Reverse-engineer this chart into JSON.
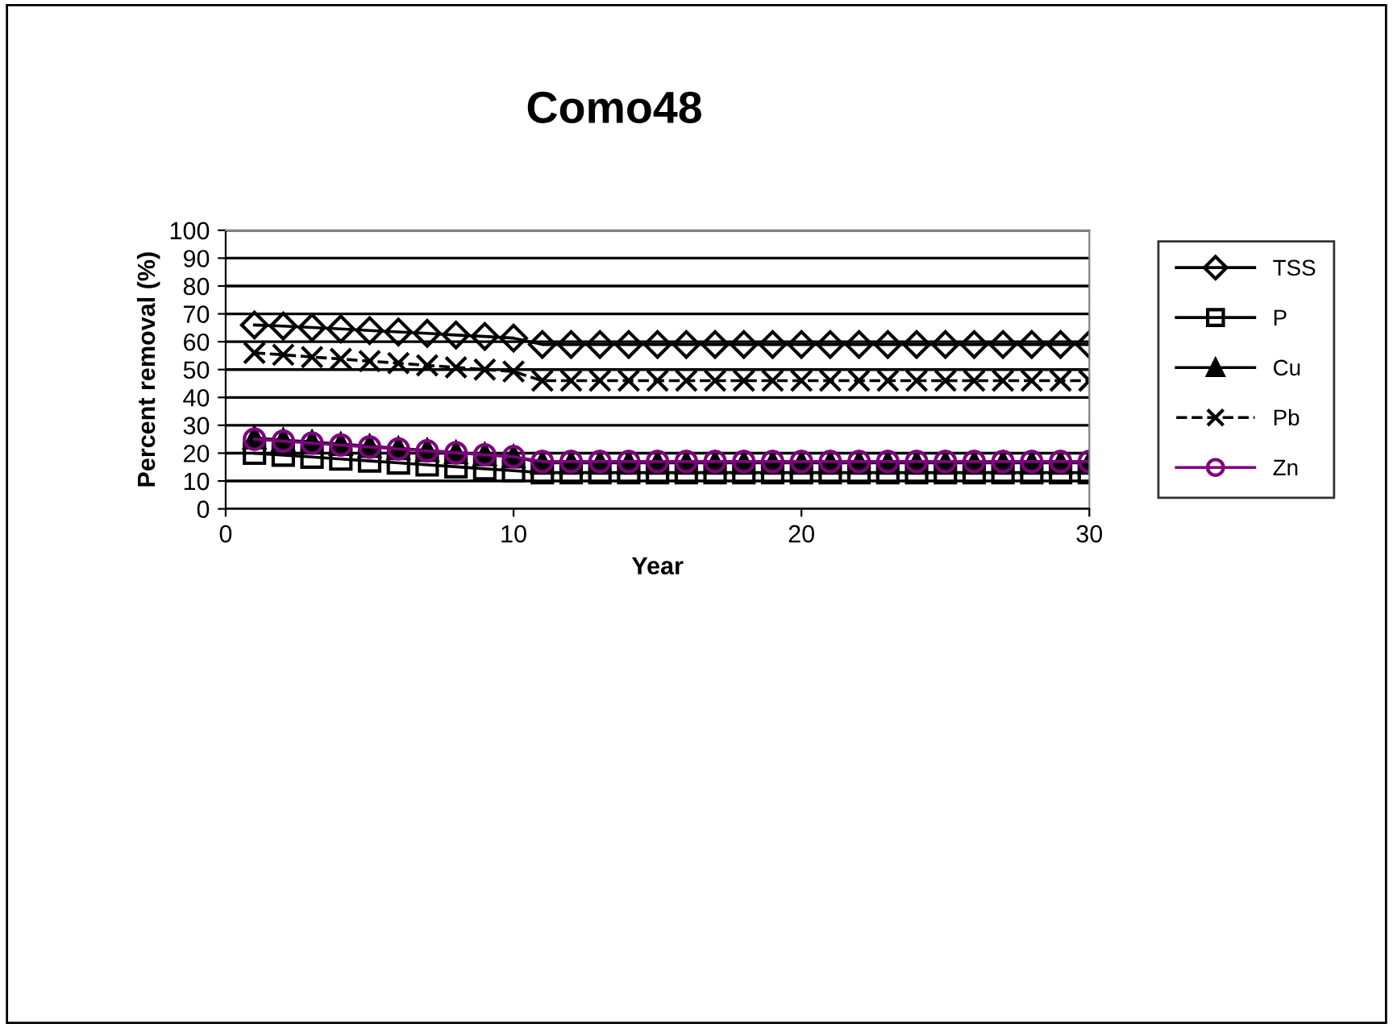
{
  "chart_data": {
    "type": "line",
    "title": "Como48",
    "xlabel": "Year",
    "ylabel": "Percent removal (%)",
    "x": [
      1,
      2,
      3,
      4,
      5,
      6,
      7,
      8,
      9,
      10,
      11,
      12,
      13,
      14,
      15,
      16,
      17,
      18,
      19,
      20,
      21,
      22,
      23,
      24,
      25,
      26,
      27,
      28,
      29,
      30
    ],
    "series": [
      {
        "name": "TSS",
        "color": "#000000",
        "marker": "diamond",
        "line_style": "solid",
        "values": [
          66.0,
          65.6,
          65.1,
          64.6,
          64.0,
          63.5,
          63.0,
          62.4,
          61.9,
          61.3,
          59,
          59,
          59,
          59,
          59,
          59,
          59,
          59,
          59,
          59,
          59,
          59,
          59,
          59,
          59,
          59,
          59,
          59,
          59,
          59
        ]
      },
      {
        "name": "P",
        "color": "#000000",
        "marker": "square",
        "line_style": "solid",
        "values": [
          20.0,
          19.3,
          18.6,
          17.9,
          17.2,
          16.5,
          15.8,
          15.1,
          14.4,
          13.7,
          13,
          13,
          13,
          13,
          13,
          13,
          13,
          13,
          13,
          13,
          13,
          13,
          13,
          13,
          13,
          13,
          13,
          13,
          13,
          13
        ]
      },
      {
        "name": "Cu",
        "color": "#000000",
        "marker": "triangle",
        "line_style": "solid",
        "values": [
          25.5,
          24.7,
          24.0,
          23.2,
          22.5,
          21.7,
          21.0,
          20.2,
          19.5,
          18.7,
          16.5,
          16.5,
          16.5,
          16.5,
          16.5,
          16.5,
          16.5,
          16.5,
          16.5,
          16.5,
          16.5,
          16.5,
          16.5,
          16.5,
          16.5,
          16.5,
          16.5,
          16.5,
          16.5,
          16.5
        ]
      },
      {
        "name": "Pb",
        "color": "#000000",
        "marker": "cross",
        "line_style": "dashed",
        "values": [
          56.0,
          55.3,
          54.5,
          53.8,
          53.0,
          52.3,
          51.5,
          50.8,
          50.0,
          49.3,
          46,
          46,
          46,
          46,
          46,
          46,
          46,
          46,
          46,
          46,
          46,
          46,
          46,
          46,
          46,
          46,
          46,
          46,
          46,
          46
        ]
      },
      {
        "name": "Zn",
        "color": "#800080",
        "marker": "circle",
        "line_style": "solid",
        "values": [
          25.0,
          24.3,
          23.6,
          22.9,
          22.2,
          21.5,
          20.8,
          20.1,
          19.4,
          18.7,
          17,
          17,
          17,
          17,
          17,
          17,
          17,
          17,
          17,
          17,
          17,
          17,
          17,
          17,
          17,
          17,
          17,
          17,
          17,
          17
        ]
      }
    ],
    "xlim": [
      0,
      30
    ],
    "xticks": [
      0,
      10,
      20,
      30
    ],
    "ylim": [
      0,
      100
    ],
    "yticks": [
      0,
      10,
      20,
      30,
      40,
      50,
      60,
      70,
      80,
      90,
      100
    ],
    "grid": "y",
    "legend": "right"
  }
}
